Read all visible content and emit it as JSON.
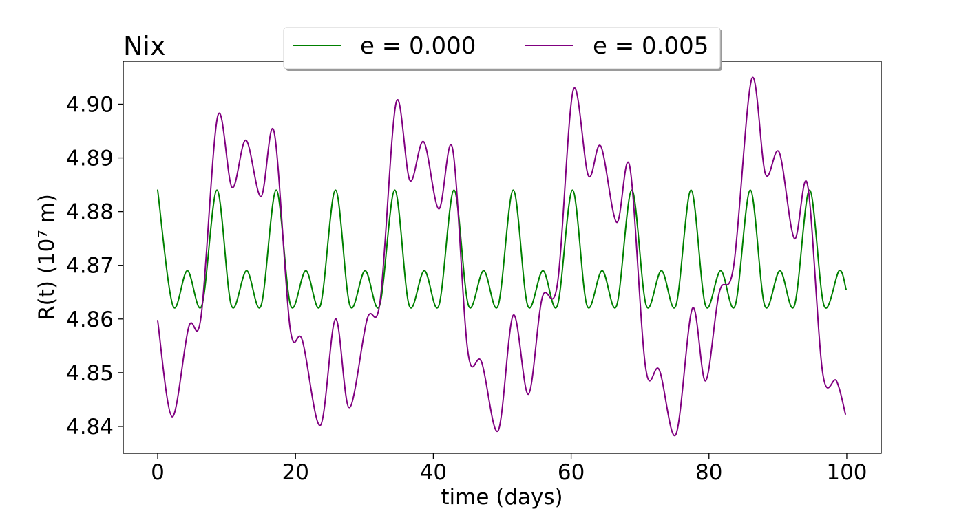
{
  "chart_data": {
    "type": "line",
    "title": "Nix",
    "xlabel": "time (days)",
    "ylabel": "R(t) (10⁷ m)",
    "xlim": [
      -5,
      105
    ],
    "ylim": [
      4.835,
      4.908
    ],
    "x_ticks": [
      0,
      20,
      40,
      60,
      80,
      100
    ],
    "y_ticks": [
      4.84,
      4.85,
      4.86,
      4.87,
      4.88,
      4.89,
      4.9
    ],
    "x_tick_labels": [
      "0",
      "20",
      "40",
      "60",
      "80",
      "100"
    ],
    "y_tick_labels": [
      "4.84",
      "4.85",
      "4.86",
      "4.87",
      "4.88",
      "4.89",
      "4.90"
    ],
    "grid": false,
    "legend_position": "top-center",
    "series": [
      {
        "name": "e = 0.000",
        "color": "#008000",
        "x": [
          0,
          2.2,
          4.3,
          6.4,
          8.6,
          10.7,
          12.9,
          15.0,
          17.2,
          19.3,
          21.5,
          23.6,
          25.8,
          27.9,
          30.1,
          32.2,
          34.4,
          36.5,
          38.7,
          40.8,
          43.0,
          45.1,
          47.3,
          49.4,
          51.6,
          53.7,
          55.9,
          58.0,
          60.2,
          62.3,
          64.5,
          66.6,
          68.8,
          70.9,
          73.1,
          75.2,
          77.4,
          79.5,
          81.7,
          83.8,
          86.0,
          88.1,
          90.3,
          92.4,
          94.6,
          96.7,
          98.9,
          99.9
        ],
        "y": [
          4.884,
          4.8625,
          4.869,
          4.8625,
          4.884,
          4.8625,
          4.869,
          4.8625,
          4.884,
          4.8625,
          4.869,
          4.8625,
          4.884,
          4.8625,
          4.869,
          4.8625,
          4.884,
          4.8625,
          4.869,
          4.8625,
          4.884,
          4.8625,
          4.869,
          4.8625,
          4.884,
          4.8625,
          4.869,
          4.8625,
          4.884,
          4.8625,
          4.869,
          4.8625,
          4.884,
          4.8625,
          4.869,
          4.8625,
          4.884,
          4.8625,
          4.869,
          4.8625,
          4.884,
          4.8625,
          4.869,
          4.8625,
          4.884,
          4.8625,
          4.869,
          4.8655
        ]
      },
      {
        "name": "e = 0.005",
        "color": "#800080",
        "x": [
          0,
          2.1,
          4.5,
          6.3,
          8.7,
          10.8,
          12.8,
          15.0,
          16.9,
          19.2,
          21.0,
          23.6,
          25.8,
          27.8,
          30.4,
          32.3,
          34.6,
          36.6,
          38.6,
          40.8,
          42.8,
          45.0,
          47.0,
          49.4,
          51.6,
          53.8,
          55.8,
          58.0,
          60.3,
          62.5,
          64.3,
          66.6,
          68.5,
          70.8,
          72.8,
          75.2,
          77.6,
          79.5,
          81.5,
          83.6,
          86.2,
          88.2,
          90.2,
          92.4,
          94.3,
          96.5,
          98.5,
          99.8
        ],
        "y": [
          4.8597,
          4.8418,
          4.8585,
          4.8605,
          4.8977,
          4.8845,
          4.8933,
          4.8828,
          4.8948,
          4.8585,
          4.856,
          4.8402,
          4.86,
          4.8435,
          4.86,
          4.8635,
          4.9003,
          4.8858,
          4.893,
          4.8805,
          4.8917,
          4.854,
          4.852,
          4.8392,
          4.8607,
          4.846,
          4.864,
          4.8665,
          4.9026,
          4.8867,
          4.8922,
          4.878,
          4.8884,
          4.851,
          4.8505,
          4.8385,
          4.862,
          4.8485,
          4.865,
          4.87,
          4.9047,
          4.887,
          4.891,
          4.875,
          4.885,
          4.85,
          4.8485,
          4.8423
        ]
      }
    ]
  }
}
